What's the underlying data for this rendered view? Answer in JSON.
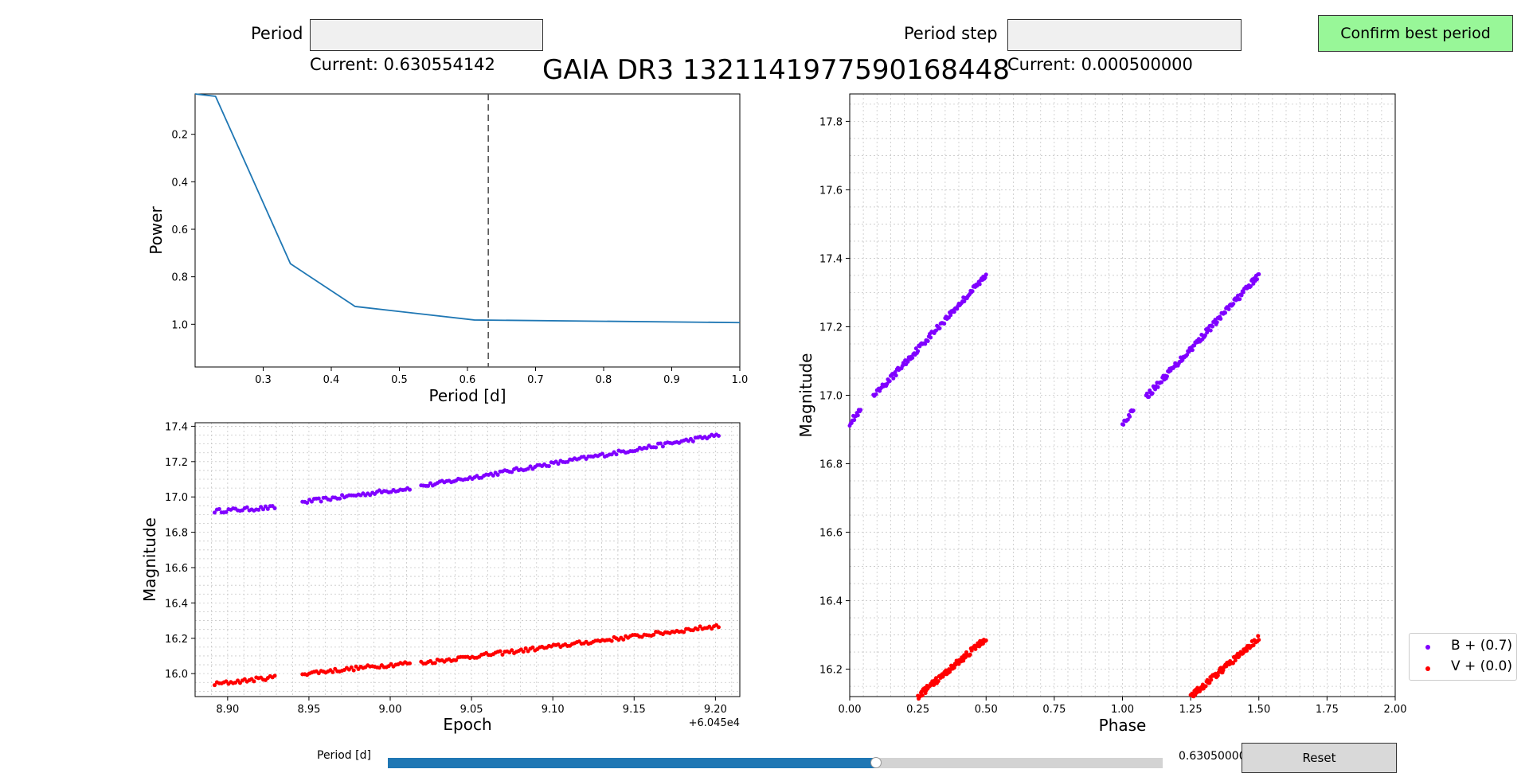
{
  "controls": {
    "period_label": "Period",
    "period_value": "",
    "period_current": "Current: 0.630554142",
    "step_label": "Period step",
    "step_value": "",
    "step_current": "Current: 0.000500000",
    "confirm_label": "Confirm best period",
    "slider_label": "Period [d]",
    "slider_value_text": "0.63050000",
    "slider_fraction": 0.63,
    "reset_label": "Reset"
  },
  "title": "GAIA DR3 1321141977590168448",
  "colors": {
    "B": "#8000ff",
    "V": "#ff0000",
    "line": "#1f77b4",
    "confirm": "#98f798"
  },
  "chart_data": [
    {
      "type": "line",
      "name": "periodogram",
      "xlabel": "Period [d]",
      "ylabel": "Power",
      "xlim": [
        0.2,
        1.0
      ],
      "ylim": [
        0.03,
        1.18
      ],
      "xticks": [
        0.3,
        0.4,
        0.5,
        0.6,
        0.7,
        0.8,
        0.9,
        1.0
      ],
      "xtick_labels": [
        "0.3",
        "0.4",
        "0.5",
        "0.6",
        "0.7",
        "0.8",
        "0.9",
        "1.0"
      ],
      "yticks": [
        0.2,
        0.4,
        0.6,
        0.8,
        1.0
      ],
      "ytick_labels": [
        "0.2",
        "0.4",
        "0.6",
        "0.8",
        "1.0"
      ],
      "x": [
        0.2,
        0.23,
        0.28,
        0.34,
        0.435,
        0.61,
        1.0
      ],
      "y": [
        0.03,
        0.04,
        0.36,
        0.745,
        0.925,
        0.982,
        0.993
      ],
      "vline": 0.6306,
      "grid": false
    },
    {
      "type": "scatter",
      "name": "lightcurve",
      "xlabel": "Epoch",
      "ylabel": "Magnitude",
      "offset_text": "+6.045e4",
      "xlim": [
        8.88,
        9.215
      ],
      "ylim": [
        17.42,
        15.87
      ],
      "xticks": [
        8.9,
        8.95,
        9.0,
        9.05,
        9.1,
        9.15,
        9.2
      ],
      "xtick_labels": [
        "8.90",
        "8.95",
        "9.00",
        "9.05",
        "9.10",
        "9.15",
        "9.20"
      ],
      "yticks": [
        16.0,
        16.2,
        16.4,
        16.6,
        16.8,
        17.0,
        17.2,
        17.4
      ],
      "ytick_labels": [
        "16.0",
        "16.2",
        "16.4",
        "16.6",
        "16.8",
        "17.0",
        "17.2",
        "17.4"
      ],
      "grid": true,
      "series": [
        {
          "label": "B",
          "segments": [
            [
              8.892,
              8.929
            ],
            [
              8.946,
              9.012
            ],
            [
              9.019,
              9.202
            ]
          ],
          "x": [
            8.892,
            8.929,
            8.946,
            9.012,
            9.019,
            9.202
          ],
          "y": [
            16.92,
            16.94,
            16.97,
            17.05,
            17.06,
            17.35
          ]
        },
        {
          "label": "V",
          "segments": [
            [
              8.892,
              8.929
            ],
            [
              8.946,
              9.012
            ],
            [
              9.019,
              9.202
            ]
          ],
          "x": [
            8.892,
            8.929,
            8.946,
            9.012,
            9.019,
            9.202
          ],
          "y": [
            15.94,
            15.98,
            16.0,
            16.06,
            16.06,
            16.27
          ]
        }
      ]
    },
    {
      "type": "scatter",
      "name": "phased",
      "xlabel": "Phase",
      "ylabel": "Magnitude",
      "xlim": [
        0.0,
        2.0
      ],
      "ylim": [
        17.88,
        16.12
      ],
      "xticks": [
        0.0,
        0.25,
        0.5,
        0.75,
        1.0,
        1.25,
        1.5,
        1.75,
        2.0
      ],
      "xtick_labels": [
        "0.00",
        "0.25",
        "0.50",
        "0.75",
        "1.00",
        "1.25",
        "1.50",
        "1.75",
        "2.00"
      ],
      "yticks": [
        16.2,
        16.4,
        16.6,
        16.8,
        17.0,
        17.2,
        17.4,
        17.6,
        17.8
      ],
      "ytick_labels": [
        "16.2",
        "16.4",
        "16.6",
        "16.8",
        "17.0",
        "17.2",
        "17.4",
        "17.6",
        "17.8"
      ],
      "grid": true,
      "series": [
        {
          "label": "B",
          "phase_range": [
            0.0,
            0.5
          ],
          "y_start": 16.92,
          "y_end": 17.35
        },
        {
          "label": "V",
          "phase_range": [
            0.25,
            0.5
          ],
          "y_start": 16.12,
          "y_end": 16.29
        }
      ],
      "legend": {
        "entries": [
          "B + (0.7)",
          "V + (0.0)"
        ],
        "position": "bottom-right-outside"
      }
    }
  ]
}
